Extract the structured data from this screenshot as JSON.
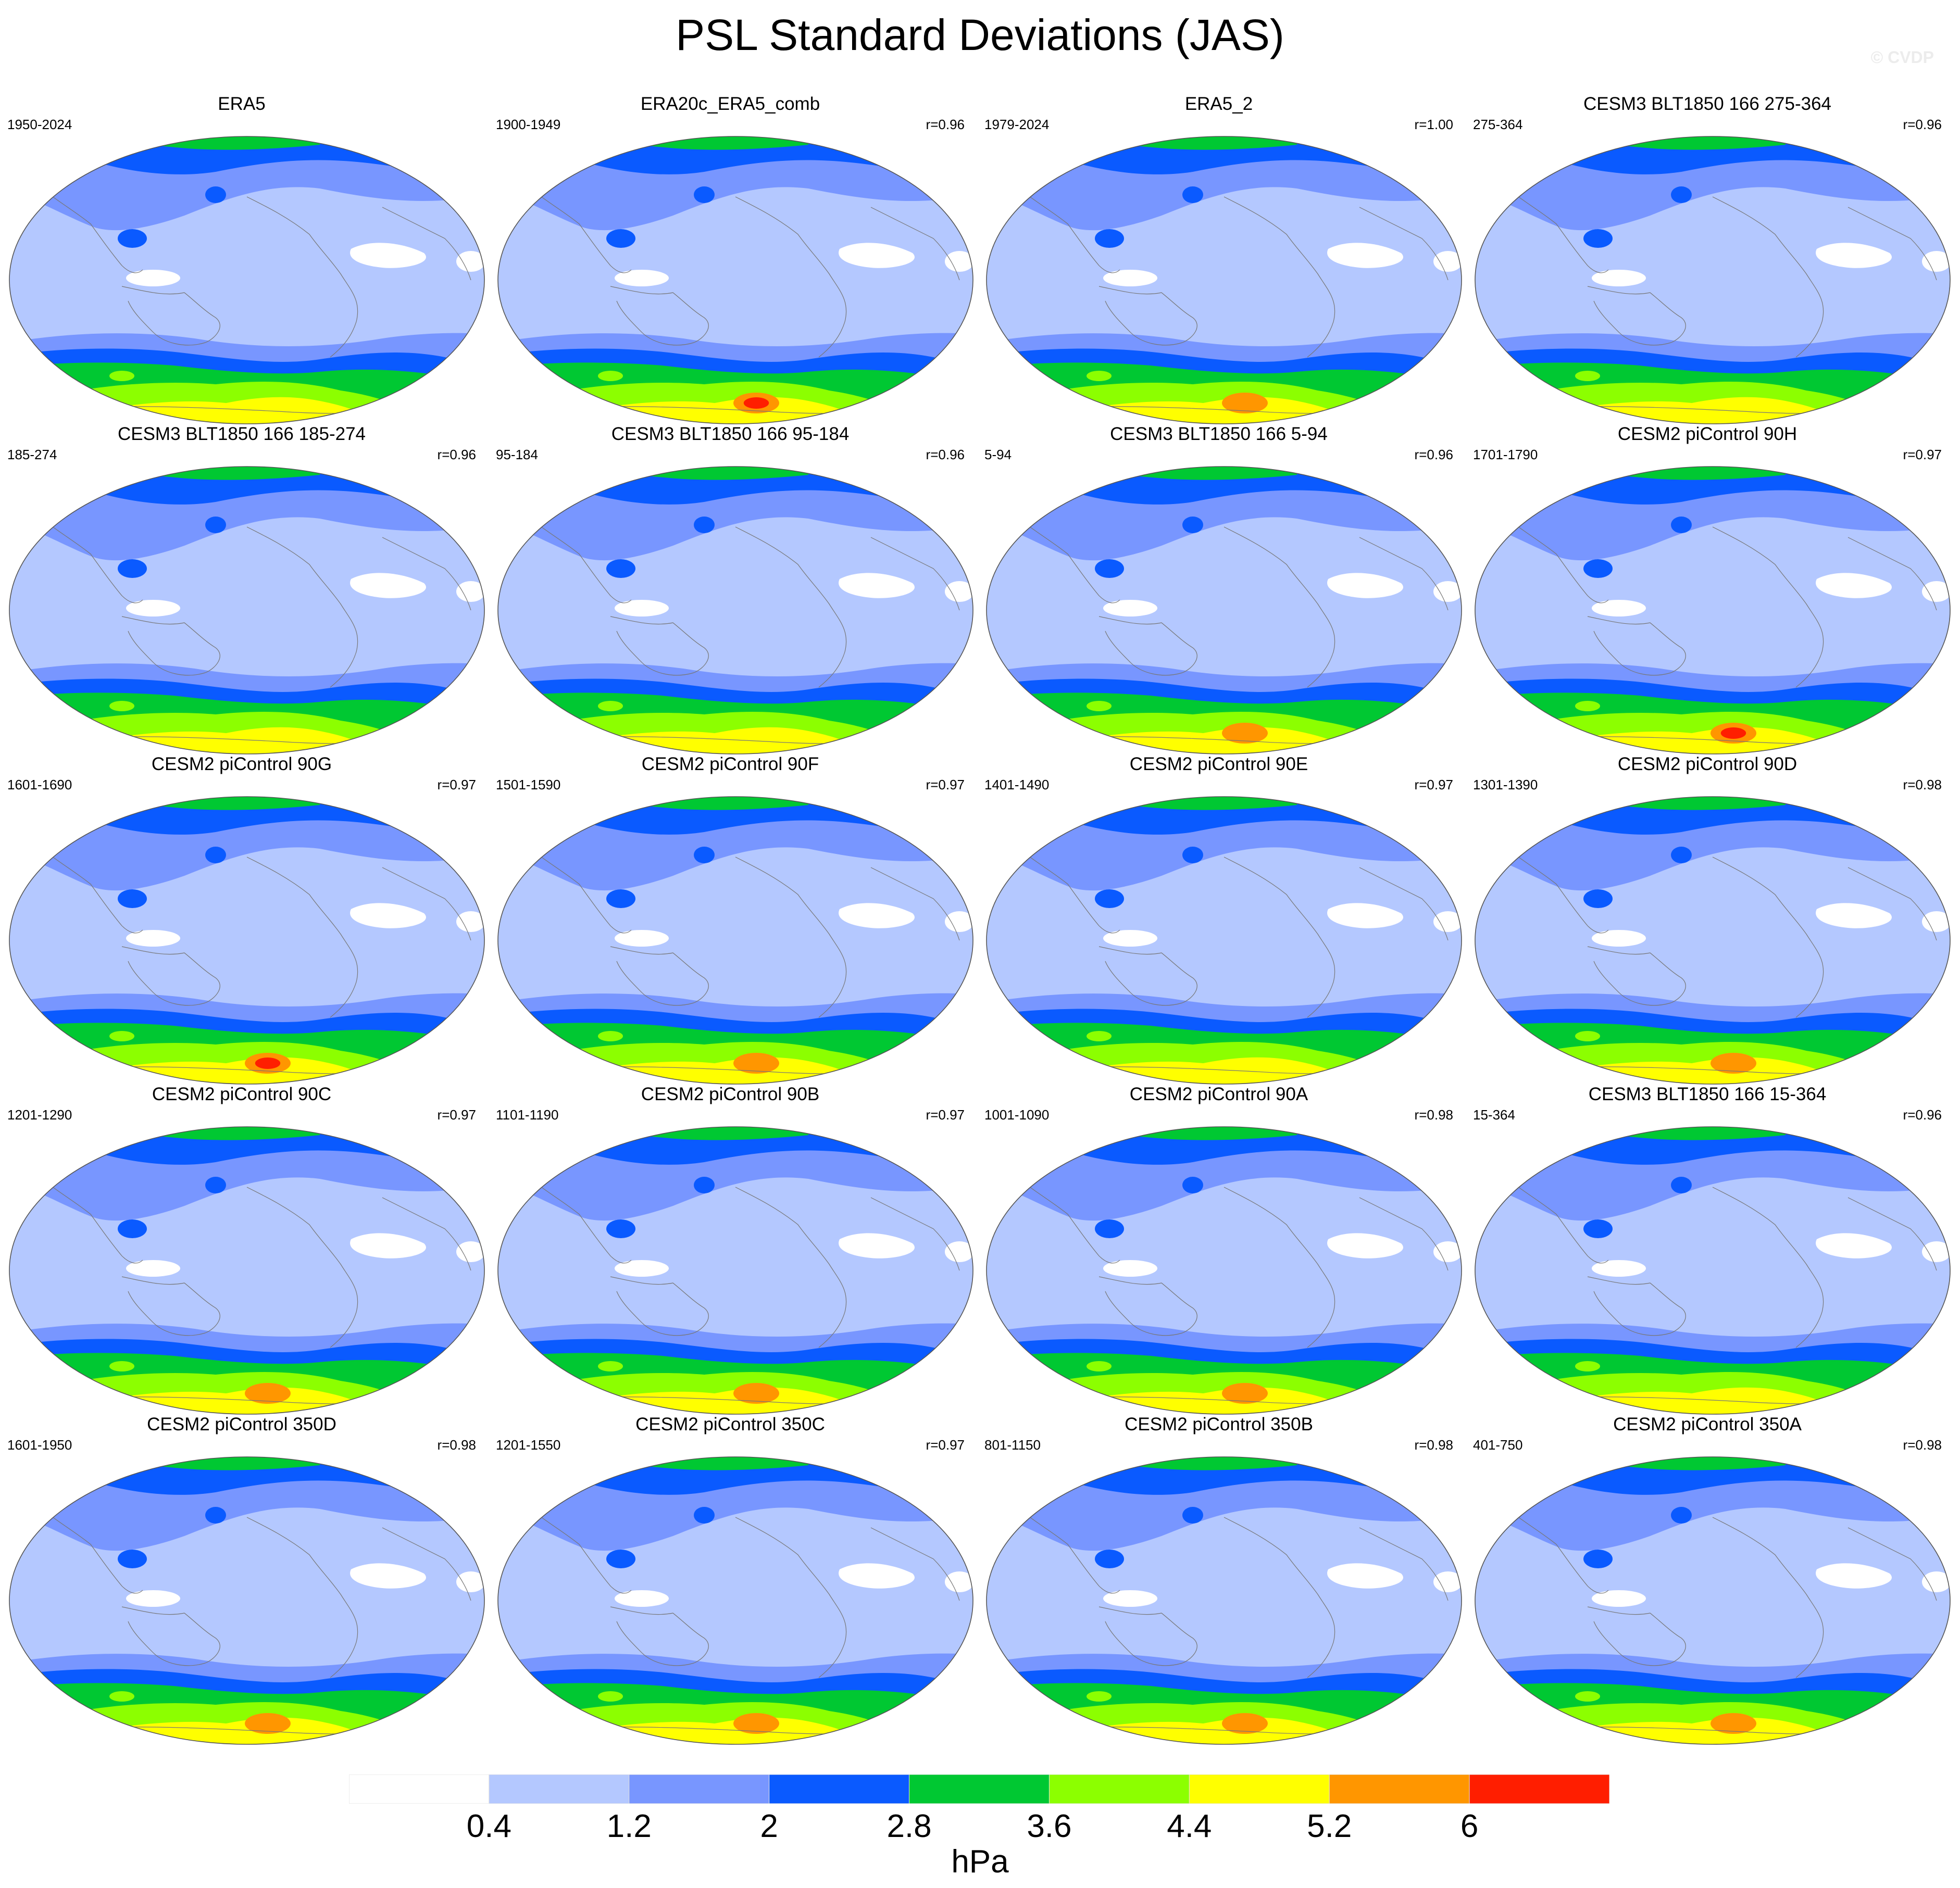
{
  "title": "PSL Standard Deviations (JAS)",
  "watermark": "© CVDP",
  "units": "hPa",
  "colorbar": {
    "labels": [
      "0.4",
      "1.2",
      "2",
      "2.8",
      "3.6",
      "4.4",
      "5.2",
      "6"
    ],
    "colors": [
      "#ffffff",
      "#b4c8ff",
      "#7896ff",
      "#0a5aff",
      "#00c832",
      "#8cff00",
      "#ffff00",
      "#ff9600",
      "#ff1e00"
    ]
  },
  "panels": [
    {
      "title": "ERA5",
      "period": "1950-2024",
      "corr": "",
      "peak": 5
    },
    {
      "title": "ERA20c_ERA5_comb",
      "period": "1900-1949",
      "corr": "r=0.96",
      "peak": 8
    },
    {
      "title": "ERA5_2",
      "period": "1979-2024",
      "corr": "r=1.00",
      "peak": 7
    },
    {
      "title": "CESM3 BLT1850 166 275-364",
      "period": "275-364",
      "corr": "r=0.96",
      "peak": 6
    },
    {
      "title": "CESM3 BLT1850 166 185-274",
      "period": "185-274",
      "corr": "r=0.96",
      "peak": 6
    },
    {
      "title": "CESM3 BLT1850 166 95-184",
      "period": "95-184",
      "corr": "r=0.96",
      "peak": 6
    },
    {
      "title": "CESM3 BLT1850 166 5-94",
      "period": "5-94",
      "corr": "r=0.96",
      "peak": 7
    },
    {
      "title": "CESM2 piControl 90H",
      "period": "1701-1790",
      "corr": "r=0.97",
      "peak": 8
    },
    {
      "title": "CESM2 piControl 90G",
      "period": "1601-1690",
      "corr": "r=0.97",
      "peak": 8
    },
    {
      "title": "CESM2 piControl 90F",
      "period": "1501-1590",
      "corr": "r=0.97",
      "peak": 7
    },
    {
      "title": "CESM2 piControl 90E",
      "period": "1401-1490",
      "corr": "r=0.97",
      "peak": 6
    },
    {
      "title": "CESM2 piControl 90D",
      "period": "1301-1390",
      "corr": "r=0.98",
      "peak": 7
    },
    {
      "title": "CESM2 piControl 90C",
      "period": "1201-1290",
      "corr": "r=0.97",
      "peak": 7
    },
    {
      "title": "CESM2 piControl 90B",
      "period": "1101-1190",
      "corr": "r=0.97",
      "peak": 7
    },
    {
      "title": "CESM2 piControl 90A",
      "period": "1001-1090",
      "corr": "r=0.98",
      "peak": 7
    },
    {
      "title": "CESM3 BLT1850 166 15-364",
      "period": "15-364",
      "corr": "r=0.96",
      "peak": 6
    },
    {
      "title": "CESM2 piControl 350D",
      "period": "1601-1950",
      "corr": "r=0.98",
      "peak": 7
    },
    {
      "title": "CESM2 piControl 350C",
      "period": "1201-1550",
      "corr": "r=0.97",
      "peak": 7
    },
    {
      "title": "CESM2 piControl 350B",
      "period": "801-1150",
      "corr": "r=0.98",
      "peak": 7
    },
    {
      "title": "CESM2 piControl 350A",
      "period": "401-750",
      "corr": "r=0.98",
      "peak": 7
    }
  ]
}
